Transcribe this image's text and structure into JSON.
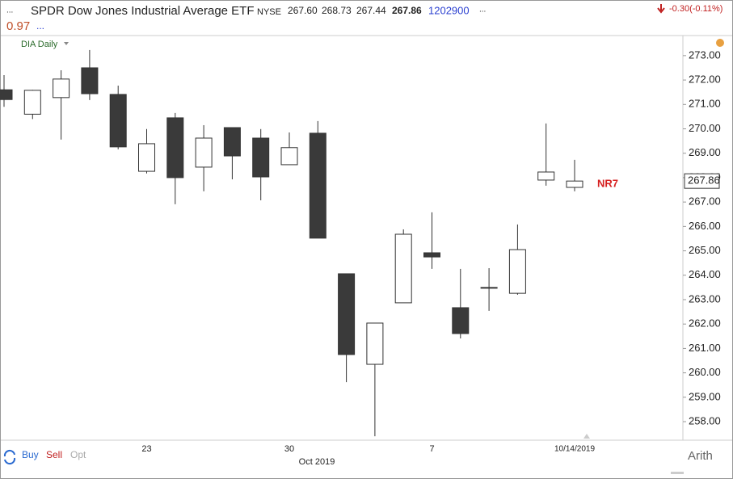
{
  "header": {
    "title": "SPDR Dow Jones Industrial Average ETF",
    "exchange": "NYSE",
    "open": "267.60",
    "high": "268.73",
    "low": "267.44",
    "close": "267.86",
    "volume": "1202900",
    "change": "-0.30(-0.11%)",
    "indicator": "0.97",
    "chart_name": "DIA Daily"
  },
  "chart_data": {
    "type": "candlestick",
    "categories": [
      null,
      null,
      null,
      null,
      null,
      "23",
      null,
      null,
      null,
      null,
      "30",
      null,
      null,
      null,
      null,
      "7",
      null,
      null,
      null,
      null,
      "10/14/2019"
    ],
    "x_group_label": "Oct 2019",
    "open": [
      271.6,
      270.6,
      271.28,
      272.5,
      271.41,
      268.26,
      270.45,
      268.43,
      270.05,
      269.62,
      268.53,
      269.82,
      264.06,
      260.35,
      262.87,
      264.92,
      262.67,
      263.5,
      263.26,
      267.9,
      267.6
    ],
    "high": [
      272.2,
      271.6,
      272.4,
      273.23,
      271.77,
      269.99,
      270.65,
      270.15,
      270.05,
      269.99,
      269.85,
      270.32,
      264.06,
      262.04,
      265.88,
      266.58,
      264.26,
      264.29,
      266.08,
      270.22,
      268.73
    ],
    "low": [
      270.9,
      270.4,
      269.56,
      271.18,
      269.16,
      268.17,
      266.91,
      267.44,
      267.93,
      267.07,
      268.53,
      265.52,
      259.62,
      257.4,
      262.87,
      264.26,
      261.41,
      262.54,
      263.2,
      267.67,
      267.44
    ],
    "close": [
      271.2,
      271.58,
      272.04,
      271.44,
      269.26,
      269.39,
      268.0,
      269.62,
      268.89,
      268.03,
      269.23,
      265.52,
      260.75,
      262.04,
      265.68,
      264.75,
      261.61,
      263.5,
      265.05,
      268.23,
      267.86
    ],
    "up_color": "#ffffff",
    "down_color": "#3a3a3a",
    "ylim": [
      257.24,
      273.79
    ],
    "yticks": [
      {
        "value": 258,
        "label": "258.00"
      },
      {
        "value": 259,
        "label": "259.00"
      },
      {
        "value": 260,
        "label": "260.00"
      },
      {
        "value": 261,
        "label": "261.00"
      },
      {
        "value": 262,
        "label": "262.00"
      },
      {
        "value": 263,
        "label": "263.00"
      },
      {
        "value": 264,
        "label": "264.00"
      },
      {
        "value": 265,
        "label": "265.00"
      },
      {
        "value": 266,
        "label": "266.00"
      },
      {
        "value": 267,
        "label": "267.00"
      },
      {
        "value": 268,
        "label": "268.00"
      },
      {
        "value": 269,
        "label": "269.00"
      },
      {
        "value": 270,
        "label": "270.00"
      },
      {
        "value": 271,
        "label": "271.00"
      },
      {
        "value": 272,
        "label": "272.00"
      },
      {
        "value": 273,
        "label": "273.00"
      }
    ],
    "last_price": {
      "value": 267.86,
      "label": "267.86"
    },
    "annotation": {
      "text": "NR7",
      "color": "#d62020"
    },
    "scale_mode": "Arith"
  },
  "toolbar": {
    "buy": "Buy",
    "sell": "Sell",
    "option": "Opt"
  }
}
